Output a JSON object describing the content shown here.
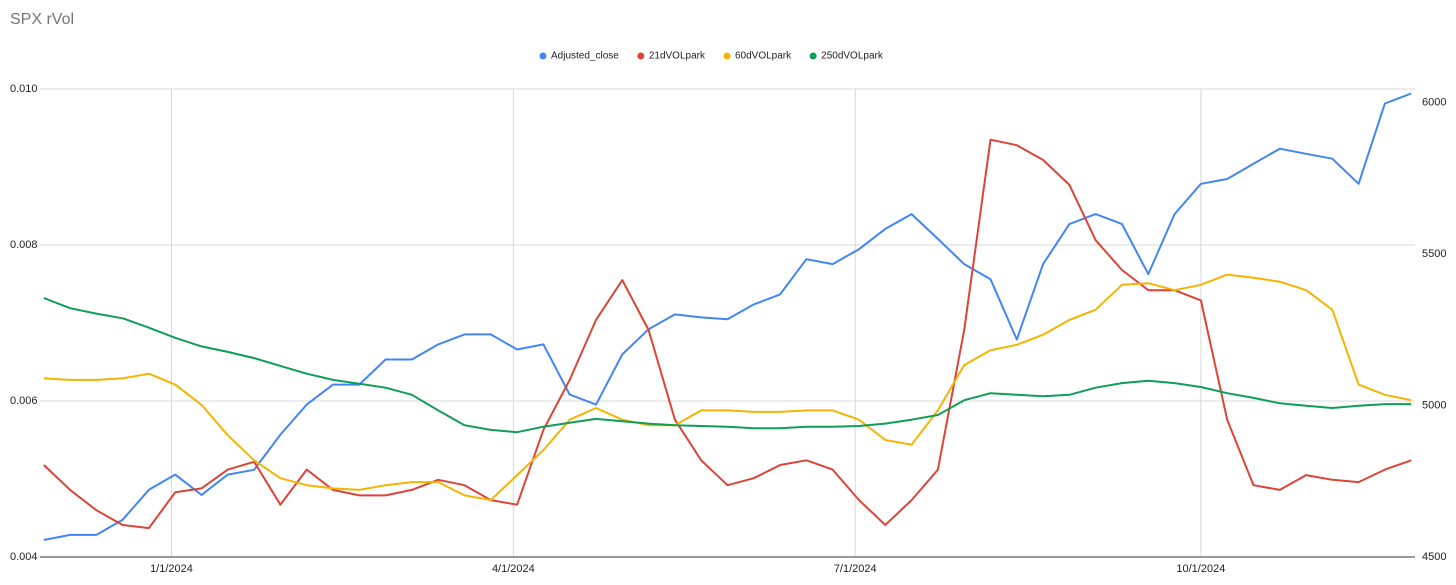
{
  "chart_data": {
    "type": "line",
    "title": "SPX rVol",
    "x": [
      "11/28/2023",
      "12/5/2023",
      "12/12/2023",
      "12/19/2023",
      "12/26/2023",
      "1/2/2024",
      "1/9/2024",
      "1/16/2024",
      "1/23/2024",
      "1/30/2024",
      "2/6/2024",
      "2/13/2024",
      "2/20/2024",
      "2/27/2024",
      "3/5/2024",
      "3/12/2024",
      "3/19/2024",
      "3/26/2024",
      "4/2/2024",
      "4/9/2024",
      "4/16/2024",
      "4/23/2024",
      "4/30/2024",
      "5/7/2024",
      "5/14/2024",
      "5/21/2024",
      "5/28/2024",
      "6/4/2024",
      "6/11/2024",
      "6/18/2024",
      "6/25/2024",
      "7/2/2024",
      "7/9/2024",
      "7/16/2024",
      "7/23/2024",
      "7/30/2024",
      "8/6/2024",
      "8/13/2024",
      "8/20/2024",
      "8/27/2024",
      "9/3/2024",
      "9/10/2024",
      "9/17/2024",
      "9/24/2024",
      "10/1/2024",
      "10/8/2024",
      "10/15/2024",
      "10/22/2024",
      "10/29/2024",
      "11/5/2024",
      "11/12/2024",
      "11/19/2024",
      "11/26/2024"
    ],
    "xlim": [
      "11/27/2023",
      "11/27/2024"
    ],
    "xticks": [
      "1/1/2024",
      "4/1/2024",
      "7/1/2024",
      "10/1/2024"
    ],
    "ylim": [
      0.004,
      0.01
    ],
    "yticks": [
      0.004,
      0.006,
      0.008,
      {
        "value": 0.01,
        "label": "0.010"
      }
    ],
    "y2lim": [
      4500,
      6045
    ],
    "y2ticks": [
      4500,
      5000,
      5500,
      6000
    ],
    "grid": true,
    "legend": "top",
    "series": [
      {
        "name": "Adjusted_close",
        "color": "#4285f4",
        "axis": "y2",
        "values": [
          4556,
          4573,
          4573,
          4623,
          4722,
          4772,
          4705,
          4772,
          4788,
          4904,
          5003,
          5069,
          5069,
          5152,
          5152,
          5202,
          5235,
          5235,
          5185,
          5202,
          5036,
          5003,
          5169,
          5252,
          5301,
          5291,
          5285,
          5334,
          5367,
          5483,
          5467,
          5516,
          5583,
          5632,
          5550,
          5467,
          5417,
          5218,
          5467,
          5599,
          5632,
          5599,
          5434,
          5632,
          5732,
          5748,
          5798,
          5848,
          5831,
          5815,
          5732,
          5997,
          6030
        ]
      },
      {
        "name": "21dVOLpark",
        "color": "#db4437",
        "values": [
          0.00518,
          0.00486,
          0.0046,
          0.00441,
          0.00437,
          0.00483,
          0.00488,
          0.00512,
          0.00522,
          0.00467,
          0.00512,
          0.00486,
          0.00479,
          0.00479,
          0.00486,
          0.00499,
          0.00492,
          0.00473,
          0.00467,
          0.00563,
          0.00627,
          0.00704,
          0.00755,
          0.00691,
          0.00576,
          0.00524,
          0.00492,
          0.00501,
          0.00518,
          0.00524,
          0.00512,
          0.00473,
          0.00441,
          0.00473,
          0.00512,
          0.00691,
          0.00935,
          0.00928,
          0.00909,
          0.00877,
          0.00806,
          0.00768,
          0.00742,
          0.00742,
          0.00729,
          0.00576,
          0.00492,
          0.00486,
          0.00505,
          0.00499,
          0.00496,
          0.00512,
          0.00524
        ]
      },
      {
        "name": "60dVOLpark",
        "color": "#f4b400",
        "values": [
          0.00629,
          0.00627,
          0.00627,
          0.00629,
          0.00635,
          0.00621,
          0.00595,
          0.00556,
          0.00524,
          0.00501,
          0.00492,
          0.00488,
          0.00486,
          0.00492,
          0.00496,
          0.00496,
          0.00479,
          0.00473,
          0.00505,
          0.00537,
          0.00576,
          0.00591,
          0.00576,
          0.00569,
          0.00569,
          0.00588,
          0.00588,
          0.00586,
          0.00586,
          0.00588,
          0.00588,
          0.00576,
          0.0055,
          0.00544,
          0.00588,
          0.00646,
          0.00665,
          0.00672,
          0.00685,
          0.00704,
          0.00717,
          0.00749,
          0.00751,
          0.00742,
          0.00749,
          0.00762,
          0.00758,
          0.00753,
          0.00742,
          0.00717,
          0.00621,
          0.00608,
          0.00601
        ]
      },
      {
        "name": "250dVOLpark",
        "color": "#0f9d58",
        "values": [
          0.00732,
          0.00719,
          0.00712,
          0.00706,
          0.00694,
          0.00681,
          0.0067,
          0.00663,
          0.00655,
          0.00645,
          0.00635,
          0.00627,
          0.00622,
          0.00617,
          0.00608,
          0.00588,
          0.00569,
          0.00563,
          0.0056,
          0.00567,
          0.00572,
          0.00577,
          0.00574,
          0.00571,
          0.00569,
          0.00568,
          0.00567,
          0.00565,
          0.00565,
          0.00567,
          0.00567,
          0.00568,
          0.00571,
          0.00576,
          0.00582,
          0.00601,
          0.0061,
          0.00608,
          0.00606,
          0.00608,
          0.00617,
          0.00623,
          0.00626,
          0.00623,
          0.00618,
          0.0061,
          0.00604,
          0.00597,
          0.00594,
          0.00591,
          0.00594,
          0.00596,
          0.00596
        ]
      }
    ]
  }
}
